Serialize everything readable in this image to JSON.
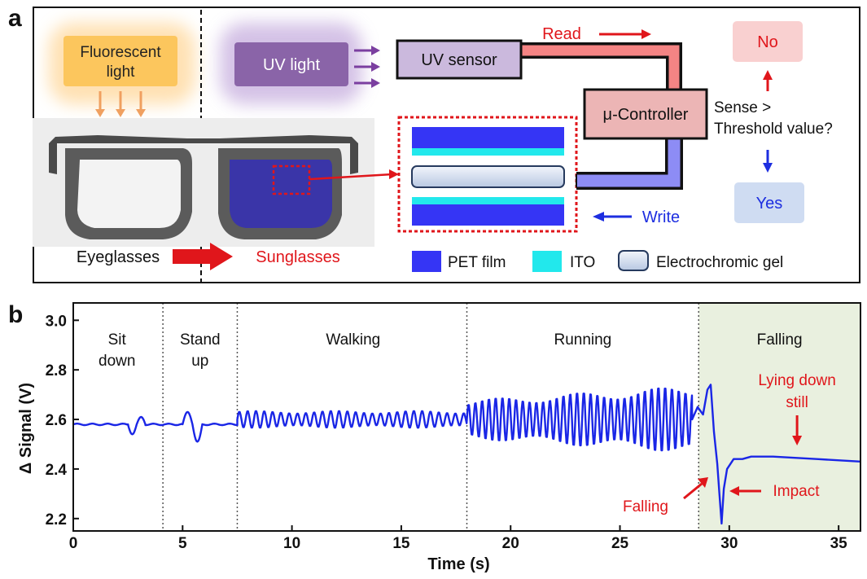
{
  "panel_a": {
    "label": "a",
    "fluorescent": "Fluorescent light",
    "fluorescent_lines": [
      "Fluorescent",
      "light"
    ],
    "uv_light": "UV light",
    "uv_sensor": "UV sensor",
    "read": "Read",
    "controller": "μ-Controller",
    "no": "No",
    "yes": "Yes",
    "sense": "Sense >",
    "threshold": "Threshold value?",
    "write": "Write",
    "eyeglasses": "Eyeglasses",
    "sunglasses": "Sunglasses",
    "legend": {
      "pet": "PET film",
      "ito": "ITO",
      "gel": "Electrochromic gel"
    },
    "colors": {
      "red": "#e0161b",
      "blue": "#1d2ee0",
      "pet": "#3535f5",
      "ito": "#22e8ec",
      "purple": "#8a64a8",
      "orange": "#ffc860"
    }
  },
  "panel_b": {
    "label": "b"
  },
  "chart_data": {
    "type": "line",
    "xlabel": "Time (s)",
    "ylabel": "Δ Signal (V)",
    "xlim": [
      0,
      36
    ],
    "ylim": [
      2.15,
      3.07
    ],
    "xticks": [
      0,
      5,
      10,
      15,
      20,
      25,
      30,
      35
    ],
    "yticks": [
      2.2,
      2.4,
      2.6,
      2.8,
      3.0
    ],
    "grid": false,
    "phase_boundaries": [
      4.1,
      7.5,
      18,
      28.6
    ],
    "phases": [
      {
        "lines": [
          "Sit",
          "down"
        ],
        "x_center": 2.0
      },
      {
        "lines": [
          "Stand",
          "up"
        ],
        "x_center": 5.8
      },
      {
        "lines": [
          "Walking"
        ],
        "x_center": 12.8
      },
      {
        "lines": [
          "Running"
        ],
        "x_center": 23.3
      },
      {
        "lines": [
          "Falling"
        ],
        "x_center": 32.3
      }
    ],
    "shaded_region": {
      "x": [
        28.6,
        36
      ],
      "color": "#e9f0df"
    },
    "annotations": [
      {
        "text": "Lying down",
        "text2": "still",
        "x": 32.9,
        "y": 2.45
      },
      {
        "text": "Falling",
        "x": 29.1,
        "y": 2.32
      },
      {
        "text": "Impact",
        "x": 29.6,
        "y": 2.2
      }
    ],
    "series": [
      {
        "color": "#1a26e6",
        "segments": [
          {
            "kind": "flat",
            "x": [
              0,
              2.5
            ],
            "y": 2.58
          },
          {
            "kind": "bump",
            "x": [
              2.5,
              3.3
            ],
            "amps": [
              -0.04,
              0.03
            ]
          },
          {
            "kind": "flat",
            "x": [
              3.3,
              5.0
            ],
            "y": 2.58
          },
          {
            "kind": "bump",
            "x": [
              5.0,
              5.9
            ],
            "amps": [
              0.05,
              -0.07
            ]
          },
          {
            "kind": "flat",
            "x": [
              5.9,
              7.5
            ],
            "y": 2.58
          },
          {
            "kind": "osc",
            "x": [
              7.5,
              18
            ],
            "base": 2.6,
            "amp": 0.035,
            "period": 0.38
          },
          {
            "kind": "osc",
            "x": [
              18,
              28.3
            ],
            "base": 2.6,
            "amp_start": 0.08,
            "amp_end": 0.14,
            "period": 0.31
          },
          {
            "kind": "fall",
            "points": [
              [
                28.3,
                2.6
              ],
              [
                28.55,
                2.65
              ],
              [
                28.8,
                2.62
              ],
              [
                29.0,
                2.72
              ],
              [
                29.15,
                2.74
              ],
              [
                29.3,
                2.55
              ],
              [
                29.45,
                2.42
              ],
              [
                29.55,
                2.3
              ],
              [
                29.65,
                2.18
              ],
              [
                29.75,
                2.32
              ],
              [
                29.9,
                2.4
              ],
              [
                30.2,
                2.44
              ],
              [
                30.6,
                2.44
              ],
              [
                31.0,
                2.45
              ],
              [
                32.0,
                2.45
              ],
              [
                34.0,
                2.44
              ],
              [
                36.0,
                2.43
              ]
            ]
          }
        ]
      }
    ]
  }
}
